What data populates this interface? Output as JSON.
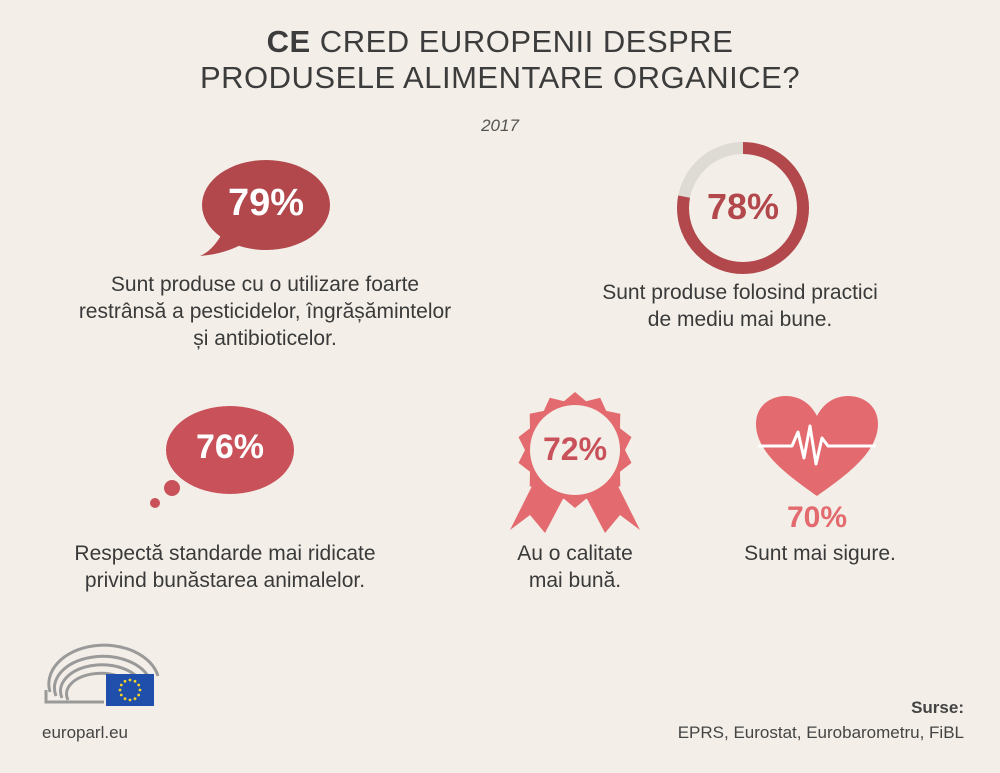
{
  "title": {
    "line1_bold": "CE",
    "line1_rest": " CRED EUROPENII DESPRE",
    "line2": "PRODUSELE ALIMENTARE ORGANICE?"
  },
  "year": "2017",
  "items": [
    {
      "value": "79%",
      "fraction": 0.79,
      "caption_lines": [
        "Sunt produse cu o utilizare foarte",
        "restrânsă a pesticidelor, îngrășămintelor",
        "și antibioticelor."
      ],
      "icon": "speech-bubble-icon"
    },
    {
      "value": "78%",
      "fraction": 0.78,
      "caption_lines": [
        "Sunt produse folosind practici",
        "de mediu mai bune."
      ],
      "icon": "progress-ring-icon"
    },
    {
      "value": "76%",
      "fraction": 0.76,
      "caption_lines": [
        "Respectă standarde mai ridicate",
        "privind bunăstarea animalelor."
      ],
      "icon": "thought-bubble-icon"
    },
    {
      "value": "72%",
      "fraction": 0.72,
      "caption_lines": [
        "Au o calitate",
        "mai bună."
      ],
      "icon": "award-rosette-icon"
    },
    {
      "value": "70%",
      "fraction": 0.7,
      "caption_lines": [
        "Sunt mai sigure."
      ],
      "icon": "heart-pulse-icon"
    }
  ],
  "colors": {
    "background": "#f3efe8",
    "dark_red": "#b2474c",
    "mid_red": "#c9515a",
    "light_red": "#e36a6e",
    "ring_track": "#dedad4"
  },
  "footer": {
    "site": "europarl.eu",
    "sources_label": "Surse:",
    "sources_text": "EPRS, Eurostat, Eurobarometru, FiBL",
    "logo": "european-parliament-logo"
  }
}
